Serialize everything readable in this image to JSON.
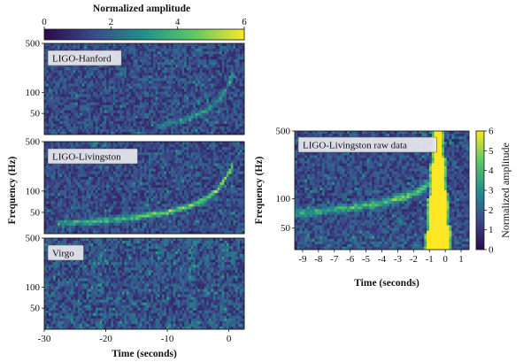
{
  "chart_data": [
    {
      "type": "heatmap",
      "id": "left-stack",
      "colorbar": {
        "title": "Normalized amplitude",
        "range": [
          0,
          6
        ],
        "ticks": [
          "0",
          "2",
          "4",
          "6"
        ],
        "colors": [
          "#2b0b4a",
          "#3b4a8c",
          "#21908c",
          "#5ec962",
          "#fde725"
        ]
      },
      "xlabel": "Time (seconds)",
      "xticks": [
        "-30",
        "-20",
        "-10",
        "0"
      ],
      "xlim": [
        -30,
        2.5
      ],
      "ylabel": "Frequency (Hz)",
      "ylim": [
        25,
        500
      ],
      "yscale": "log",
      "panels": [
        {
          "label": "LIGO-Hanford",
          "yticks": [
            "500",
            "100",
            "50"
          ],
          "chirp_strength": 0.55,
          "track": [
            [
              -12,
              32
            ],
            [
              -8,
              38
            ],
            [
              -5,
              48
            ],
            [
              -3,
              60
            ],
            [
              -1.5,
              80
            ],
            [
              -0.5,
              110
            ],
            [
              0.3,
              150
            ],
            [
              0.8,
              200
            ]
          ]
        },
        {
          "label": "LIGO-Livingston",
          "yticks": [
            "500",
            "100",
            "50"
          ],
          "chirp_strength": 1.0,
          "track": [
            [
              -28,
              35
            ],
            [
              -20,
              38
            ],
            [
              -15,
              43
            ],
            [
              -10,
              50
            ],
            [
              -6,
              62
            ],
            [
              -4,
              75
            ],
            [
              -2,
              100
            ],
            [
              -0.8,
              140
            ],
            [
              0.2,
              190
            ],
            [
              0.8,
              250
            ]
          ]
        },
        {
          "label": "Virgo",
          "yticks": [
            "500",
            "100",
            "50"
          ],
          "chirp_strength": 0.0,
          "track": []
        }
      ]
    },
    {
      "type": "heatmap",
      "id": "raw-data",
      "label": "LIGO-Livingston raw data",
      "colorbar": {
        "title": "Normalized amplitude",
        "range": [
          0,
          6
        ],
        "ticks": [
          "0",
          "1",
          "2",
          "3",
          "4",
          "5",
          "6"
        ]
      },
      "xlabel": "Time (seconds)",
      "xticks": [
        "-9",
        "-8",
        "-7",
        "-6",
        "-5",
        "-4",
        "-3",
        "-2",
        "-1",
        "0",
        "1"
      ],
      "xlim": [
        -9.5,
        1.5
      ],
      "ylabel": "Frequency (Hz)",
      "yticks": [
        "500",
        "100",
        "50"
      ],
      "ylim": [
        30,
        500
      ],
      "yscale": "log",
      "glitch_center": -0.45,
      "track": [
        [
          -9.5,
          70
        ],
        [
          -8,
          74
        ],
        [
          -6,
          80
        ],
        [
          -4,
          90
        ],
        [
          -2.5,
          105
        ],
        [
          -1.5,
          125
        ],
        [
          -0.8,
          155
        ]
      ]
    }
  ]
}
